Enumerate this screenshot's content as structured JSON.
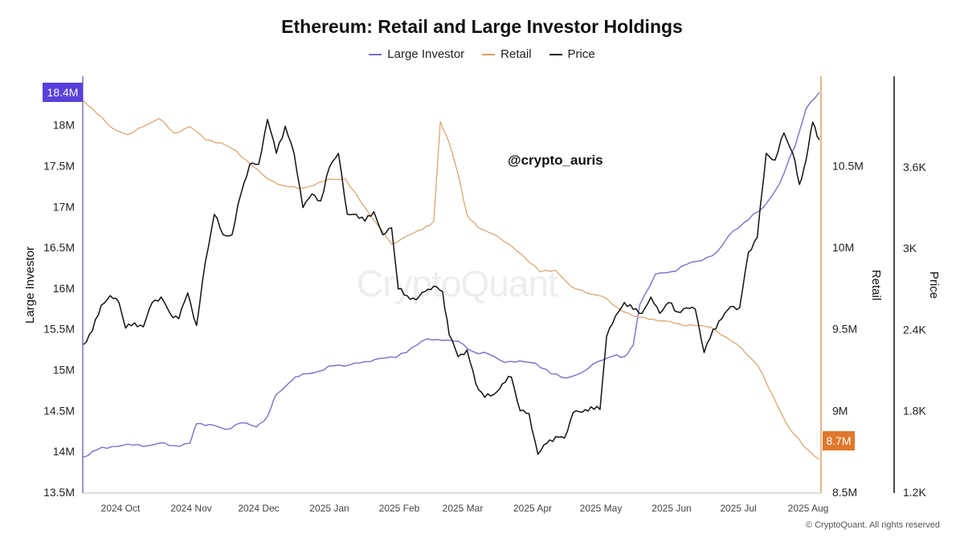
{
  "chart_data": {
    "type": "line",
    "title": "Ethereum: Retail and Large Investor Holdings",
    "legend": {
      "placement": "top-center"
    },
    "grid": false,
    "x_labels": [
      "2024 Oct",
      "2024 Nov",
      "2024 Dec",
      "2025 Jan",
      "2025 Feb",
      "2025 Mar",
      "2025 Apr",
      "2025 May",
      "2025 Jun",
      "2025 Jul",
      "2025 Aug"
    ],
    "x_range": [
      "2024-09-14",
      "2025-08-12"
    ],
    "axes": {
      "large_investor": {
        "label": "Large Investor",
        "side": "left",
        "range": [
          13500000,
          18400000
        ],
        "tick_values": [
          13500000,
          14000000,
          14500000,
          15000000,
          15500000,
          16000000,
          16500000,
          17000000,
          17500000,
          18000000
        ],
        "tick_labels": [
          "13.5M",
          "14M",
          "14.5M",
          "15M",
          "15.5M",
          "16M",
          "16.5M",
          "17M",
          "17.5M",
          "18M"
        ],
        "current_label": "18.4M"
      },
      "retail": {
        "label": "Retail",
        "side": "right",
        "range": [
          8500000,
          10950000
        ],
        "tick_values": [
          8500000,
          9000000,
          9500000,
          10000000,
          10500000
        ],
        "tick_labels": [
          "8.5M",
          "9M",
          "9.5M",
          "10M",
          "10.5M"
        ],
        "current_label": "8.7M"
      },
      "price": {
        "label": "Price",
        "side": "right-outer",
        "range": [
          1200,
          4150
        ],
        "tick_values": [
          1200,
          1800,
          2400,
          3000,
          3600
        ],
        "tick_labels": [
          "1.2K",
          "1.8K",
          "2.4K",
          "3K",
          "3.6K"
        ]
      }
    },
    "series": [
      {
        "name": "Large Investor",
        "axis": "large_investor",
        "color": "#7b6fc9",
        "points": [
          [
            "2024-09-14",
            13930000
          ],
          [
            "2024-09-20",
            14020000
          ],
          [
            "2024-09-27",
            14060000
          ],
          [
            "2024-10-04",
            14090000
          ],
          [
            "2024-10-11",
            14060000
          ],
          [
            "2024-10-18",
            14100000
          ],
          [
            "2024-10-25",
            14070000
          ],
          [
            "2024-11-01",
            14100000
          ],
          [
            "2024-11-04",
            14340000
          ],
          [
            "2024-11-10",
            14330000
          ],
          [
            "2024-11-17",
            14270000
          ],
          [
            "2024-11-24",
            14350000
          ],
          [
            "2024-12-01",
            14300000
          ],
          [
            "2024-12-06",
            14430000
          ],
          [
            "2024-12-10",
            14700000
          ],
          [
            "2024-12-17",
            14870000
          ],
          [
            "2024-12-22",
            14950000
          ],
          [
            "2024-12-29",
            14980000
          ],
          [
            "2025-01-05",
            15050000
          ],
          [
            "2025-01-12",
            15060000
          ],
          [
            "2025-01-19",
            15100000
          ],
          [
            "2025-01-26",
            15140000
          ],
          [
            "2025-02-02",
            15150000
          ],
          [
            "2025-02-09",
            15270000
          ],
          [
            "2025-02-16",
            15380000
          ],
          [
            "2025-02-23",
            15360000
          ],
          [
            "2025-03-02",
            15350000
          ],
          [
            "2025-03-09",
            15220000
          ],
          [
            "2025-03-16",
            15190000
          ],
          [
            "2025-03-23",
            15090000
          ],
          [
            "2025-03-30",
            15110000
          ],
          [
            "2025-04-06",
            15080000
          ],
          [
            "2025-04-13",
            14950000
          ],
          [
            "2025-04-20",
            14900000
          ],
          [
            "2025-04-27",
            14970000
          ],
          [
            "2025-05-04",
            15100000
          ],
          [
            "2025-05-11",
            15170000
          ],
          [
            "2025-05-16",
            15160000
          ],
          [
            "2025-05-20",
            15300000
          ],
          [
            "2025-05-23",
            15800000
          ],
          [
            "2025-05-30",
            16170000
          ],
          [
            "2025-06-06",
            16200000
          ],
          [
            "2025-06-13",
            16290000
          ],
          [
            "2025-06-20",
            16340000
          ],
          [
            "2025-06-27",
            16450000
          ],
          [
            "2025-07-04",
            16700000
          ],
          [
            "2025-07-11",
            16840000
          ],
          [
            "2025-07-18",
            17000000
          ],
          [
            "2025-07-25",
            17280000
          ],
          [
            "2025-08-01",
            17740000
          ],
          [
            "2025-08-06",
            18200000
          ],
          [
            "2025-08-12",
            18400000
          ]
        ]
      },
      {
        "name": "Retail",
        "axis": "retail",
        "color": "#d9a066",
        "points": [
          [
            "2024-09-14",
            10900000
          ],
          [
            "2024-09-20",
            10820000
          ],
          [
            "2024-09-27",
            10730000
          ],
          [
            "2024-10-04",
            10690000
          ],
          [
            "2024-10-11",
            10740000
          ],
          [
            "2024-10-18",
            10790000
          ],
          [
            "2024-10-25",
            10700000
          ],
          [
            "2024-11-01",
            10740000
          ],
          [
            "2024-11-08",
            10660000
          ],
          [
            "2024-11-15",
            10640000
          ],
          [
            "2024-11-22",
            10590000
          ],
          [
            "2024-11-29",
            10500000
          ],
          [
            "2024-12-06",
            10420000
          ],
          [
            "2024-12-13",
            10380000
          ],
          [
            "2024-12-20",
            10360000
          ],
          [
            "2024-12-27",
            10380000
          ],
          [
            "2025-01-03",
            10420000
          ],
          [
            "2025-01-10",
            10420000
          ],
          [
            "2025-01-17",
            10280000
          ],
          [
            "2025-01-24",
            10150000
          ],
          [
            "2025-01-31",
            10020000
          ],
          [
            "2025-02-07",
            10070000
          ],
          [
            "2025-02-14",
            10110000
          ],
          [
            "2025-02-19",
            10160000
          ],
          [
            "2025-02-22",
            10770000
          ],
          [
            "2025-02-26",
            10640000
          ],
          [
            "2025-03-02",
            10450000
          ],
          [
            "2025-03-06",
            10200000
          ],
          [
            "2025-03-11",
            10120000
          ],
          [
            "2025-03-18",
            10080000
          ],
          [
            "2025-03-25",
            10020000
          ],
          [
            "2025-04-01",
            9940000
          ],
          [
            "2025-04-08",
            9850000
          ],
          [
            "2025-04-15",
            9860000
          ],
          [
            "2025-04-22",
            9760000
          ],
          [
            "2025-04-29",
            9720000
          ],
          [
            "2025-05-06",
            9700000
          ],
          [
            "2025-05-13",
            9630000
          ],
          [
            "2025-05-20",
            9580000
          ],
          [
            "2025-05-27",
            9560000
          ],
          [
            "2025-06-03",
            9550000
          ],
          [
            "2025-06-10",
            9530000
          ],
          [
            "2025-06-17",
            9520000
          ],
          [
            "2025-06-24",
            9510000
          ],
          [
            "2025-07-01",
            9450000
          ],
          [
            "2025-07-08",
            9380000
          ],
          [
            "2025-07-15",
            9280000
          ],
          [
            "2025-07-22",
            9090000
          ],
          [
            "2025-07-29",
            8900000
          ],
          [
            "2025-08-05",
            8780000
          ],
          [
            "2025-08-12",
            8700000
          ]
        ]
      },
      {
        "name": "Price",
        "axis": "price",
        "color": "#111111",
        "points": [
          [
            "2024-09-14",
            2290
          ],
          [
            "2024-09-18",
            2390
          ],
          [
            "2024-09-22",
            2580
          ],
          [
            "2024-09-26",
            2650
          ],
          [
            "2024-09-30",
            2600
          ],
          [
            "2024-10-03",
            2410
          ],
          [
            "2024-10-07",
            2450
          ],
          [
            "2024-10-11",
            2420
          ],
          [
            "2024-10-15",
            2600
          ],
          [
            "2024-10-19",
            2640
          ],
          [
            "2024-10-23",
            2520
          ],
          [
            "2024-10-27",
            2480
          ],
          [
            "2024-10-31",
            2670
          ],
          [
            "2024-11-04",
            2430
          ],
          [
            "2024-11-08",
            2900
          ],
          [
            "2024-11-12",
            3250
          ],
          [
            "2024-11-16",
            3100
          ],
          [
            "2024-11-20",
            3100
          ],
          [
            "2024-11-24",
            3400
          ],
          [
            "2024-11-28",
            3620
          ],
          [
            "2024-12-02",
            3620
          ],
          [
            "2024-12-06",
            3950
          ],
          [
            "2024-12-10",
            3700
          ],
          [
            "2024-12-14",
            3900
          ],
          [
            "2024-12-18",
            3700
          ],
          [
            "2024-12-22",
            3300
          ],
          [
            "2024-12-26",
            3400
          ],
          [
            "2024-12-30",
            3350
          ],
          [
            "2025-01-03",
            3600
          ],
          [
            "2025-01-07",
            3700
          ],
          [
            "2025-01-11",
            3250
          ],
          [
            "2025-01-15",
            3250
          ],
          [
            "2025-01-19",
            3200
          ],
          [
            "2025-01-23",
            3270
          ],
          [
            "2025-01-27",
            3100
          ],
          [
            "2025-01-31",
            3150
          ],
          [
            "2025-02-03",
            2700
          ],
          [
            "2025-02-07",
            2650
          ],
          [
            "2025-02-11",
            2620
          ],
          [
            "2025-02-15",
            2680
          ],
          [
            "2025-02-19",
            2720
          ],
          [
            "2025-02-23",
            2680
          ],
          [
            "2025-02-26",
            2360
          ],
          [
            "2025-03-02",
            2200
          ],
          [
            "2025-03-06",
            2250
          ],
          [
            "2025-03-10",
            2000
          ],
          [
            "2025-03-14",
            1900
          ],
          [
            "2025-03-18",
            1920
          ],
          [
            "2025-03-22",
            2000
          ],
          [
            "2025-03-26",
            2050
          ],
          [
            "2025-03-30",
            1800
          ],
          [
            "2025-04-03",
            1780
          ],
          [
            "2025-04-07",
            1480
          ],
          [
            "2025-04-11",
            1560
          ],
          [
            "2025-04-15",
            1610
          ],
          [
            "2025-04-19",
            1600
          ],
          [
            "2025-04-23",
            1790
          ],
          [
            "2025-04-27",
            1790
          ],
          [
            "2025-05-01",
            1830
          ],
          [
            "2025-05-05",
            1810
          ],
          [
            "2025-05-08",
            2350
          ],
          [
            "2025-05-12",
            2500
          ],
          [
            "2025-05-16",
            2600
          ],
          [
            "2025-05-20",
            2550
          ],
          [
            "2025-05-24",
            2520
          ],
          [
            "2025-05-28",
            2640
          ],
          [
            "2025-06-01",
            2520
          ],
          [
            "2025-06-05",
            2600
          ],
          [
            "2025-06-09",
            2530
          ],
          [
            "2025-06-13",
            2560
          ],
          [
            "2025-06-17",
            2550
          ],
          [
            "2025-06-21",
            2230
          ],
          [
            "2025-06-25",
            2400
          ],
          [
            "2025-06-29",
            2480
          ],
          [
            "2025-07-03",
            2570
          ],
          [
            "2025-07-07",
            2560
          ],
          [
            "2025-07-11",
            2970
          ],
          [
            "2025-07-15",
            3080
          ],
          [
            "2025-07-19",
            3700
          ],
          [
            "2025-07-23",
            3650
          ],
          [
            "2025-07-27",
            3850
          ],
          [
            "2025-07-31",
            3700
          ],
          [
            "2025-08-03",
            3470
          ],
          [
            "2025-08-06",
            3650
          ],
          [
            "2025-08-09",
            3930
          ],
          [
            "2025-08-12",
            3800
          ]
        ]
      }
    ],
    "badges": {
      "large_investor_color": "#5b3fd9",
      "retail_color": "#e0782d"
    }
  },
  "watermark": "CryptoQuant",
  "handle": "@crypto_auris",
  "copyright": "© CryptoQuant. All rights reserved"
}
